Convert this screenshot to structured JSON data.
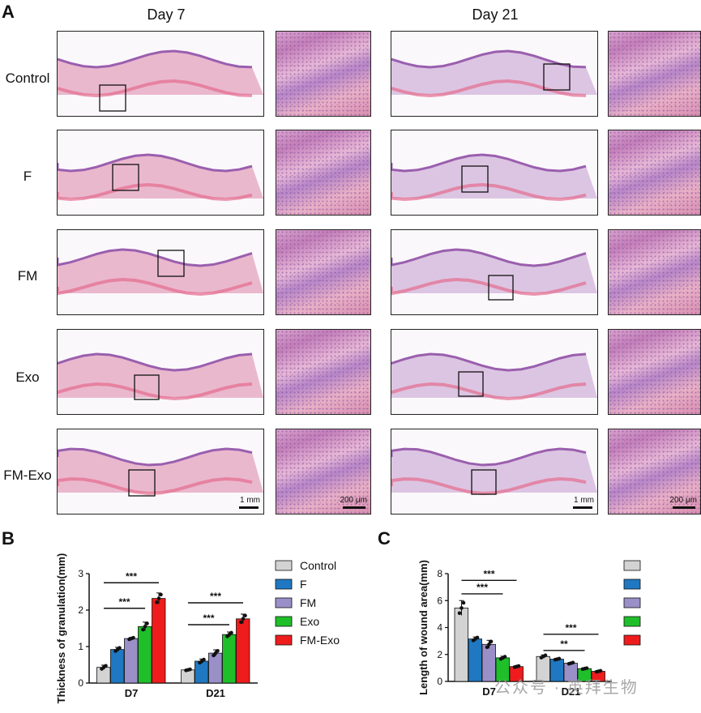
{
  "panel_a": {
    "letter": "A",
    "day_labels": [
      "Day 7",
      "Day 21"
    ],
    "row_labels": [
      "Control",
      "F",
      "FM",
      "Exo",
      "FM-Exo"
    ],
    "scale_bars": {
      "overview": "1 mm",
      "zoom": "200 μm"
    }
  },
  "panel_b": {
    "letter": "B"
  },
  "panel_c": {
    "letter": "C"
  },
  "watermark": "公众号 · 英拜生物",
  "colors": {
    "Control": "#d3d3d3",
    "F": "#1f78c1",
    "FM": "#9b8fc8",
    "Exo": "#1fbf2a",
    "FM-Exo": "#ee1c1c"
  },
  "chart_data": [
    {
      "type": "bar",
      "ylabel": "Thickness of granulation(mm)",
      "ylim": [
        0,
        3
      ],
      "yticks": [
        "0",
        "1",
        "2",
        "3"
      ],
      "categories": [
        "D7",
        "D21"
      ],
      "series": [
        {
          "name": "Control",
          "values": [
            0.43,
            0.36
          ],
          "err": [
            0.06,
            0.02
          ]
        },
        {
          "name": "F",
          "values": [
            0.92,
            0.6
          ],
          "err": [
            0.06,
            0.06
          ]
        },
        {
          "name": "FM",
          "values": [
            1.22,
            0.82
          ],
          "err": [
            0.03,
            0.09
          ]
        },
        {
          "name": "Exo",
          "values": [
            1.55,
            1.33
          ],
          "err": [
            0.12,
            0.07
          ]
        },
        {
          "name": "FM-Exo",
          "values": [
            2.32,
            1.76
          ],
          "err": [
            0.15,
            0.13
          ]
        }
      ],
      "legend": [
        "Control",
        "F",
        "FM",
        "Exo",
        "FM-Exo"
      ],
      "significance": [
        "***",
        "***",
        "***",
        "***"
      ]
    },
    {
      "type": "bar",
      "ylabel": "Length of wound area(mm)",
      "ylim": [
        0,
        8
      ],
      "yticks": [
        "0",
        "2",
        "4",
        "6",
        "8"
      ],
      "categories": [
        "D7",
        "D21"
      ],
      "series": [
        {
          "name": "Control",
          "values": [
            5.45,
            1.85
          ],
          "err": [
            0.55,
            0.12
          ]
        },
        {
          "name": "F",
          "values": [
            3.15,
            1.65
          ],
          "err": [
            0.15,
            0.05
          ]
        },
        {
          "name": "FM",
          "values": [
            2.75,
            1.35
          ],
          "err": [
            0.3,
            0.06
          ]
        },
        {
          "name": "Exo",
          "values": [
            1.75,
            0.95
          ],
          "err": [
            0.12,
            0.05
          ]
        },
        {
          "name": "FM-Exo",
          "values": [
            1.1,
            0.75
          ],
          "err": [
            0.06,
            0.05
          ]
        }
      ],
      "legend": [
        "",
        "",
        "",
        "",
        ""
      ],
      "significance": [
        "***",
        "***",
        "***",
        "**"
      ]
    }
  ]
}
